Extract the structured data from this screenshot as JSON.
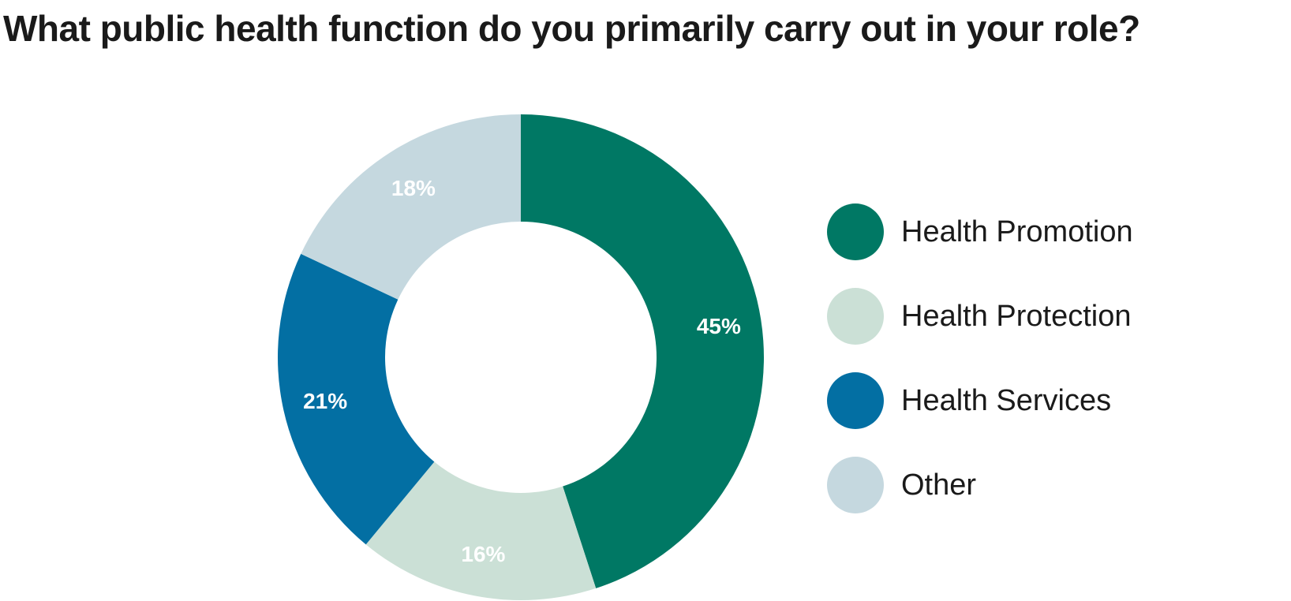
{
  "chart_data": {
    "type": "pie",
    "title": "What public health function do you primarily carry out in your role?",
    "categories": [
      "Health Promotion",
      "Health Protection",
      "Health Services",
      "Other"
    ],
    "values": [
      45,
      16,
      21,
      18
    ],
    "value_labels": [
      "45%",
      "16%",
      "21%",
      "18%"
    ],
    "unit": "%",
    "colors": [
      "#007864",
      "#cbe0d6",
      "#036fa3",
      "#c5d8df"
    ],
    "donut": true,
    "start": "12 o'clock",
    "direction": "clockwise",
    "legend_position": "right"
  }
}
